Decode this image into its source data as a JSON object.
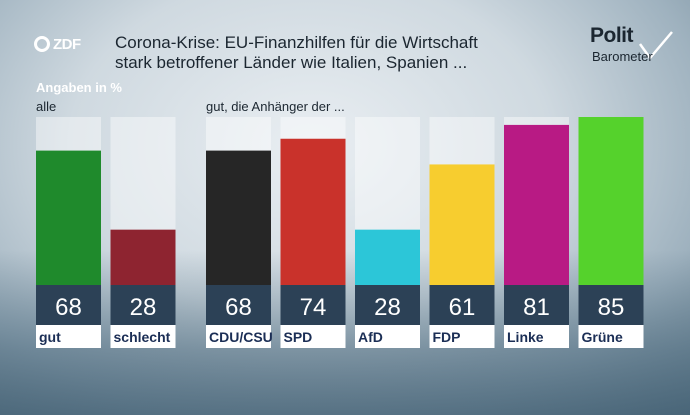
{
  "header": {
    "logo": "ZDF",
    "title_line1": "Corona-Krise: EU-Finanzhilfen für die Wirtschaft",
    "title_line2": "stark betroffener Länder wie Italien, Spanien ...",
    "brand_line1": "Polit",
    "brand_line2": "Barometer"
  },
  "chart_data": {
    "type": "bar",
    "unit_label": "Angaben in %",
    "groups": [
      {
        "label": "alle",
        "categories": [
          "gut",
          "schlecht"
        ],
        "values": [
          68,
          28
        ],
        "colors": [
          "#1f8a2c",
          "#8e2430"
        ]
      },
      {
        "label": "gut, die Anhänger der ...",
        "categories": [
          "CDU/CSU",
          "SPD",
          "AfD",
          "FDP",
          "Linke",
          "Grüne"
        ],
        "values": [
          68,
          74,
          28,
          61,
          81,
          85
        ],
        "colors": [
          "#262626",
          "#c9322b",
          "#2cc6d8",
          "#f7cd2f",
          "#b81a84",
          "#55d22c"
        ]
      }
    ],
    "ylim": [
      0,
      85
    ]
  }
}
